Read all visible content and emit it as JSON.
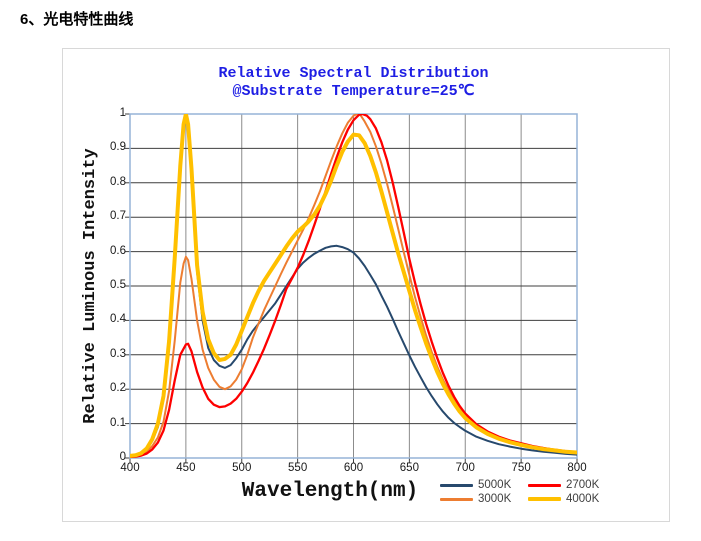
{
  "page": {
    "heading": "6、光电特性曲线"
  },
  "chart": {
    "title_line1": "Relative Spectral Distribution",
    "title_line2": "@Substrate Temperature=25℃",
    "title_color": "#1e1ee4"
  },
  "chart_data": {
    "type": "line",
    "title": "Relative Spectral Distribution",
    "subtitle": "@Substrate Temperature=25℃",
    "xlabel": "Wavelength(nm)",
    "ylabel": "Relative Luminous Intensity",
    "xlim": [
      400,
      800
    ],
    "ylim": [
      0,
      1
    ],
    "x_ticks": [
      400,
      450,
      500,
      550,
      600,
      650,
      700,
      750,
      800
    ],
    "y_ticks": [
      0,
      0.1,
      0.2,
      0.3,
      0.4,
      0.5,
      0.6,
      0.7,
      0.8,
      0.9,
      1
    ],
    "grid": true,
    "legend_position": "bottom-right",
    "legend_order": [
      "5000K",
      "2700K",
      "3000K",
      "4000K"
    ],
    "style": {
      "plot_border": "#95b3d7",
      "hgrid": "#3f3f3f",
      "vgrid": "#8c8c8c",
      "tick_color": "#404040"
    },
    "series": [
      {
        "name": "5000K",
        "color": "#27496d",
        "width": 2,
        "points": [
          [
            400,
            0.005
          ],
          [
            405,
            0.007
          ],
          [
            410,
            0.012
          ],
          [
            415,
            0.025
          ],
          [
            420,
            0.05
          ],
          [
            425,
            0.09
          ],
          [
            430,
            0.17
          ],
          [
            435,
            0.33
          ],
          [
            440,
            0.57
          ],
          [
            445,
            0.84
          ],
          [
            448,
            0.96
          ],
          [
            450,
            0.99
          ],
          [
            452,
            0.96
          ],
          [
            455,
            0.83
          ],
          [
            460,
            0.54
          ],
          [
            465,
            0.4
          ],
          [
            470,
            0.32
          ],
          [
            475,
            0.285
          ],
          [
            480,
            0.268
          ],
          [
            485,
            0.262
          ],
          [
            490,
            0.27
          ],
          [
            495,
            0.29
          ],
          [
            500,
            0.315
          ],
          [
            505,
            0.345
          ],
          [
            510,
            0.37
          ],
          [
            515,
            0.39
          ],
          [
            520,
            0.41
          ],
          [
            525,
            0.43
          ],
          [
            530,
            0.45
          ],
          [
            535,
            0.475
          ],
          [
            540,
            0.5
          ],
          [
            545,
            0.525
          ],
          [
            550,
            0.55
          ],
          [
            555,
            0.568
          ],
          [
            560,
            0.582
          ],
          [
            565,
            0.594
          ],
          [
            570,
            0.603
          ],
          [
            575,
            0.611
          ],
          [
            580,
            0.615
          ],
          [
            585,
            0.617
          ],
          [
            590,
            0.613
          ],
          [
            595,
            0.607
          ],
          [
            600,
            0.597
          ],
          [
            605,
            0.58
          ],
          [
            610,
            0.558
          ],
          [
            615,
            0.532
          ],
          [
            620,
            0.505
          ],
          [
            625,
            0.472
          ],
          [
            630,
            0.44
          ],
          [
            635,
            0.405
          ],
          [
            640,
            0.368
          ],
          [
            645,
            0.333
          ],
          [
            650,
            0.298
          ],
          [
            655,
            0.265
          ],
          [
            660,
            0.235
          ],
          [
            665,
            0.206
          ],
          [
            670,
            0.18
          ],
          [
            675,
            0.156
          ],
          [
            680,
            0.135
          ],
          [
            685,
            0.117
          ],
          [
            690,
            0.102
          ],
          [
            695,
            0.09
          ],
          [
            700,
            0.079
          ],
          [
            710,
            0.062
          ],
          [
            720,
            0.05
          ],
          [
            730,
            0.04
          ],
          [
            740,
            0.033
          ],
          [
            750,
            0.027
          ],
          [
            760,
            0.022
          ],
          [
            770,
            0.018
          ],
          [
            780,
            0.015
          ],
          [
            790,
            0.012
          ],
          [
            800,
            0.01
          ]
        ]
      },
      {
        "name": "3000K",
        "color": "#ed7d31",
        "width": 2,
        "points": [
          [
            400,
            0.004
          ],
          [
            405,
            0.005
          ],
          [
            410,
            0.009
          ],
          [
            415,
            0.018
          ],
          [
            420,
            0.035
          ],
          [
            425,
            0.06
          ],
          [
            430,
            0.105
          ],
          [
            435,
            0.195
          ],
          [
            440,
            0.34
          ],
          [
            445,
            0.51
          ],
          [
            448,
            0.565
          ],
          [
            450,
            0.585
          ],
          [
            452,
            0.575
          ],
          [
            455,
            0.52
          ],
          [
            460,
            0.4
          ],
          [
            465,
            0.315
          ],
          [
            470,
            0.262
          ],
          [
            475,
            0.228
          ],
          [
            480,
            0.207
          ],
          [
            485,
            0.2
          ],
          [
            490,
            0.208
          ],
          [
            495,
            0.228
          ],
          [
            500,
            0.258
          ],
          [
            505,
            0.3
          ],
          [
            510,
            0.35
          ],
          [
            515,
            0.39
          ],
          [
            520,
            0.43
          ],
          [
            525,
            0.465
          ],
          [
            530,
            0.5
          ],
          [
            535,
            0.535
          ],
          [
            540,
            0.568
          ],
          [
            545,
            0.6
          ],
          [
            550,
            0.632
          ],
          [
            555,
            0.664
          ],
          [
            560,
            0.698
          ],
          [
            565,
            0.736
          ],
          [
            570,
            0.776
          ],
          [
            575,
            0.82
          ],
          [
            580,
            0.864
          ],
          [
            585,
            0.906
          ],
          [
            590,
            0.944
          ],
          [
            595,
            0.975
          ],
          [
            600,
            0.995
          ],
          [
            603,
            1.0
          ],
          [
            606,
            0.998
          ],
          [
            610,
            0.978
          ],
          [
            615,
            0.948
          ],
          [
            620,
            0.906
          ],
          [
            625,
            0.856
          ],
          [
            630,
            0.798
          ],
          [
            635,
            0.733
          ],
          [
            640,
            0.666
          ],
          [
            645,
            0.598
          ],
          [
            650,
            0.532
          ],
          [
            655,
            0.468
          ],
          [
            660,
            0.41
          ],
          [
            665,
            0.356
          ],
          [
            670,
            0.308
          ],
          [
            675,
            0.265
          ],
          [
            680,
            0.228
          ],
          [
            685,
            0.196
          ],
          [
            690,
            0.168
          ],
          [
            695,
            0.143
          ],
          [
            700,
            0.123
          ],
          [
            710,
            0.094
          ],
          [
            720,
            0.074
          ],
          [
            730,
            0.059
          ],
          [
            740,
            0.047
          ],
          [
            750,
            0.039
          ],
          [
            760,
            0.032
          ],
          [
            770,
            0.026
          ],
          [
            780,
            0.021
          ],
          [
            790,
            0.017
          ],
          [
            800,
            0.014
          ]
        ]
      },
      {
        "name": "2700K",
        "color": "#fe0000",
        "width": 2.3,
        "points": [
          [
            400,
            0.003
          ],
          [
            405,
            0.004
          ],
          [
            410,
            0.007
          ],
          [
            415,
            0.013
          ],
          [
            420,
            0.025
          ],
          [
            425,
            0.045
          ],
          [
            430,
            0.08
          ],
          [
            435,
            0.14
          ],
          [
            440,
            0.225
          ],
          [
            445,
            0.3
          ],
          [
            450,
            0.33
          ],
          [
            452,
            0.332
          ],
          [
            455,
            0.31
          ],
          [
            460,
            0.25
          ],
          [
            465,
            0.205
          ],
          [
            470,
            0.172
          ],
          [
            475,
            0.155
          ],
          [
            480,
            0.148
          ],
          [
            485,
            0.15
          ],
          [
            490,
            0.158
          ],
          [
            495,
            0.172
          ],
          [
            500,
            0.193
          ],
          [
            505,
            0.218
          ],
          [
            510,
            0.248
          ],
          [
            515,
            0.282
          ],
          [
            520,
            0.318
          ],
          [
            525,
            0.358
          ],
          [
            530,
            0.4
          ],
          [
            535,
            0.445
          ],
          [
            540,
            0.492
          ],
          [
            545,
            0.522
          ],
          [
            550,
            0.553
          ],
          [
            555,
            0.59
          ],
          [
            560,
            0.632
          ],
          [
            565,
            0.678
          ],
          [
            570,
            0.726
          ],
          [
            575,
            0.776
          ],
          [
            580,
            0.826
          ],
          [
            585,
            0.874
          ],
          [
            590,
            0.918
          ],
          [
            595,
            0.955
          ],
          [
            600,
            0.982
          ],
          [
            605,
            0.998
          ],
          [
            608,
            1.0
          ],
          [
            612,
            0.995
          ],
          [
            615,
            0.985
          ],
          [
            620,
            0.958
          ],
          [
            625,
            0.918
          ],
          [
            630,
            0.866
          ],
          [
            635,
            0.802
          ],
          [
            640,
            0.73
          ],
          [
            645,
            0.655
          ],
          [
            650,
            0.578
          ],
          [
            655,
            0.51
          ],
          [
            660,
            0.447
          ],
          [
            665,
            0.39
          ],
          [
            670,
            0.338
          ],
          [
            675,
            0.29
          ],
          [
            680,
            0.247
          ],
          [
            685,
            0.21
          ],
          [
            690,
            0.178
          ],
          [
            695,
            0.151
          ],
          [
            700,
            0.129
          ],
          [
            710,
            0.098
          ],
          [
            720,
            0.077
          ],
          [
            730,
            0.062
          ],
          [
            740,
            0.051
          ],
          [
            750,
            0.043
          ],
          [
            760,
            0.035
          ],
          [
            770,
            0.029
          ],
          [
            780,
            0.024
          ],
          [
            790,
            0.02
          ],
          [
            800,
            0.017
          ]
        ]
      },
      {
        "name": "4000K",
        "color": "#ffc000",
        "width": 4,
        "points": [
          [
            400,
            0.006
          ],
          [
            405,
            0.008
          ],
          [
            410,
            0.014
          ],
          [
            415,
            0.028
          ],
          [
            420,
            0.055
          ],
          [
            425,
            0.1
          ],
          [
            430,
            0.18
          ],
          [
            435,
            0.34
          ],
          [
            440,
            0.58
          ],
          [
            445,
            0.85
          ],
          [
            448,
            0.97
          ],
          [
            450,
            1.0
          ],
          [
            452,
            0.97
          ],
          [
            455,
            0.84
          ],
          [
            460,
            0.56
          ],
          [
            465,
            0.425
          ],
          [
            470,
            0.345
          ],
          [
            475,
            0.305
          ],
          [
            480,
            0.285
          ],
          [
            485,
            0.288
          ],
          [
            490,
            0.3
          ],
          [
            495,
            0.33
          ],
          [
            500,
            0.37
          ],
          [
            505,
            0.41
          ],
          [
            510,
            0.45
          ],
          [
            515,
            0.485
          ],
          [
            520,
            0.515
          ],
          [
            525,
            0.54
          ],
          [
            530,
            0.565
          ],
          [
            535,
            0.59
          ],
          [
            540,
            0.615
          ],
          [
            545,
            0.638
          ],
          [
            550,
            0.658
          ],
          [
            555,
            0.672
          ],
          [
            560,
            0.688
          ],
          [
            565,
            0.708
          ],
          [
            570,
            0.734
          ],
          [
            575,
            0.768
          ],
          [
            580,
            0.806
          ],
          [
            585,
            0.85
          ],
          [
            590,
            0.89
          ],
          [
            595,
            0.92
          ],
          [
            600,
            0.94
          ],
          [
            605,
            0.938
          ],
          [
            610,
            0.915
          ],
          [
            615,
            0.878
          ],
          [
            620,
            0.83
          ],
          [
            625,
            0.775
          ],
          [
            630,
            0.715
          ],
          [
            635,
            0.655
          ],
          [
            640,
            0.595
          ],
          [
            645,
            0.54
          ],
          [
            650,
            0.485
          ],
          [
            655,
            0.43
          ],
          [
            660,
            0.38
          ],
          [
            665,
            0.333
          ],
          [
            670,
            0.29
          ],
          [
            675,
            0.25
          ],
          [
            680,
            0.215
          ],
          [
            685,
            0.185
          ],
          [
            690,
            0.158
          ],
          [
            695,
            0.135
          ],
          [
            700,
            0.116
          ],
          [
            710,
            0.089
          ],
          [
            720,
            0.07
          ],
          [
            730,
            0.056
          ],
          [
            740,
            0.046
          ],
          [
            750,
            0.038
          ],
          [
            760,
            0.031
          ],
          [
            770,
            0.026
          ],
          [
            780,
            0.022
          ],
          [
            790,
            0.018
          ],
          [
            800,
            0.016
          ]
        ]
      }
    ]
  }
}
